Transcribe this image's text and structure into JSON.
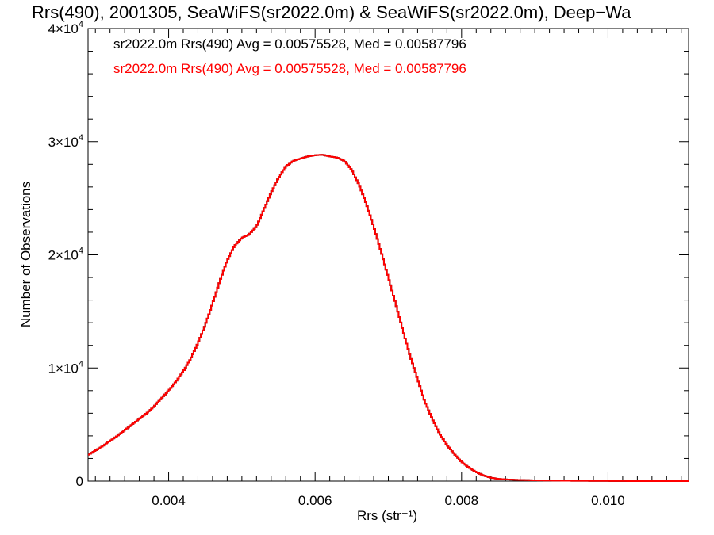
{
  "chart_data": {
    "type": "line",
    "title": "Rrs(490), 2001305, SeaWiFS(sr2022.0m) & SeaWiFS(sr2022.0m), Deep−Wa",
    "xlabel": "Rrs (str⁻¹)",
    "ylabel": "Number of Observations",
    "xlim": [
      0.0029,
      0.0111
    ],
    "ylim": [
      0,
      40000
    ],
    "x_ticks": [
      {
        "value": 0.004,
        "label": "0.004"
      },
      {
        "value": 0.006,
        "label": "0.006"
      },
      {
        "value": 0.008,
        "label": "0.008"
      },
      {
        "value": 0.01,
        "label": "0.010"
      }
    ],
    "y_ticks": [
      {
        "value": 0,
        "label": "0"
      },
      {
        "value": 10000,
        "mant": "1×10",
        "exp": "4"
      },
      {
        "value": 20000,
        "mant": "2×10",
        "exp": "4"
      },
      {
        "value": 30000,
        "mant": "3×10",
        "exp": "4"
      },
      {
        "value": 40000,
        "mant": "4×10",
        "exp": "4"
      }
    ],
    "grid": false,
    "legend_position": "top-left",
    "series": [
      {
        "name": "sr2022.0m Rrs(490) Avg = 0.00575528, Med = 0.00587796",
        "color": "#000000",
        "x": [
          0.0029,
          0.003,
          0.0031,
          0.0032,
          0.0033,
          0.0034,
          0.0035,
          0.0036,
          0.0037,
          0.0038,
          0.0039,
          0.004,
          0.0041,
          0.0042,
          0.0043,
          0.0044,
          0.0045,
          0.0046,
          0.0047,
          0.0048,
          0.0049,
          0.005,
          0.0051,
          0.0052,
          0.0053,
          0.0054,
          0.0055,
          0.0056,
          0.0057,
          0.0058,
          0.0059,
          0.006,
          0.0061,
          0.0062,
          0.0063,
          0.0064,
          0.0065,
          0.0066,
          0.0067,
          0.0068,
          0.0069,
          0.007,
          0.0071,
          0.0072,
          0.0073,
          0.0074,
          0.0075,
          0.0076,
          0.0077,
          0.0078,
          0.0079,
          0.008,
          0.0081,
          0.0082,
          0.0083,
          0.0084,
          0.0085,
          0.0086,
          0.0088,
          0.009,
          0.0092,
          0.0095,
          0.0098,
          0.0101,
          0.0104,
          0.0107,
          0.0111
        ],
        "values": [
          2300,
          2700,
          3100,
          3550,
          4000,
          4500,
          5000,
          5500,
          6000,
          6600,
          7300,
          8000,
          8800,
          9700,
          10800,
          12200,
          13800,
          15700,
          17700,
          19500,
          20800,
          21500,
          21800,
          22500,
          24000,
          25500,
          26800,
          27800,
          28300,
          28500,
          28700,
          28800,
          28850,
          28700,
          28600,
          28300,
          27500,
          26200,
          24500,
          22500,
          20300,
          18000,
          15700,
          13300,
          11000,
          9000,
          7000,
          5500,
          4200,
          3200,
          2400,
          1700,
          1200,
          800,
          500,
          300,
          200,
          150,
          100,
          70,
          50,
          30,
          20,
          10,
          0,
          0,
          0
        ]
      },
      {
        "name": "sr2022.0m Rrs(490) Avg = 0.00575528, Med = 0.00587796",
        "color": "#ff0000",
        "x": [
          0.0029,
          0.003,
          0.0031,
          0.0032,
          0.0033,
          0.0034,
          0.0035,
          0.0036,
          0.0037,
          0.0038,
          0.0039,
          0.004,
          0.0041,
          0.0042,
          0.0043,
          0.0044,
          0.0045,
          0.0046,
          0.0047,
          0.0048,
          0.0049,
          0.005,
          0.0051,
          0.0052,
          0.0053,
          0.0054,
          0.0055,
          0.0056,
          0.0057,
          0.0058,
          0.0059,
          0.006,
          0.0061,
          0.0062,
          0.0063,
          0.0064,
          0.0065,
          0.0066,
          0.0067,
          0.0068,
          0.0069,
          0.007,
          0.0071,
          0.0072,
          0.0073,
          0.0074,
          0.0075,
          0.0076,
          0.0077,
          0.0078,
          0.0079,
          0.008,
          0.0081,
          0.0082,
          0.0083,
          0.0084,
          0.0085,
          0.0086,
          0.0088,
          0.009,
          0.0092,
          0.0095,
          0.0098,
          0.0101,
          0.0104,
          0.0107,
          0.0111
        ],
        "values": [
          2300,
          2700,
          3100,
          3550,
          4000,
          4500,
          5000,
          5500,
          6000,
          6600,
          7300,
          8000,
          8800,
          9700,
          10800,
          12200,
          13800,
          15700,
          17700,
          19500,
          20800,
          21500,
          21800,
          22500,
          24000,
          25500,
          26800,
          27800,
          28300,
          28500,
          28700,
          28800,
          28850,
          28700,
          28600,
          28300,
          27500,
          26200,
          24500,
          22500,
          20300,
          18000,
          15700,
          13300,
          11000,
          9000,
          7000,
          5500,
          4200,
          3200,
          2400,
          1700,
          1200,
          800,
          500,
          300,
          200,
          150,
          100,
          70,
          50,
          30,
          20,
          10,
          0,
          0,
          0
        ]
      }
    ]
  }
}
